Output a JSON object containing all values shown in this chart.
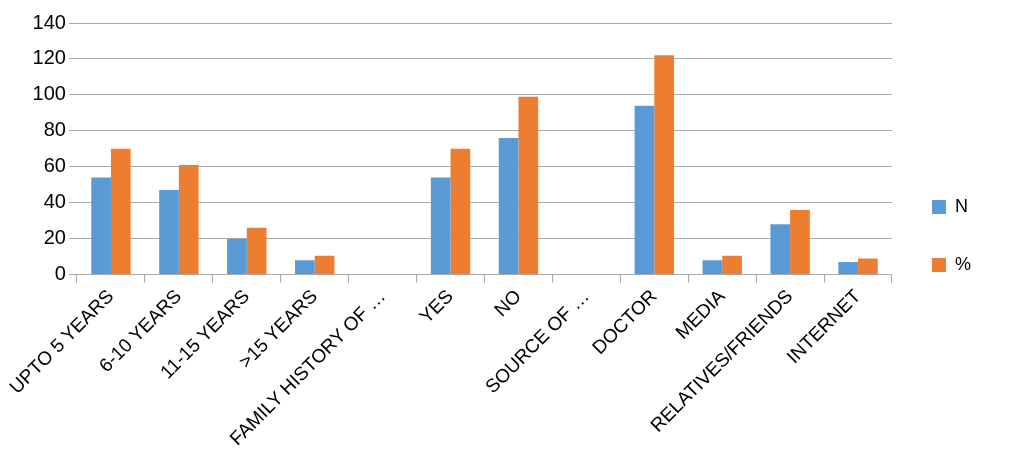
{
  "chart_data": {
    "type": "bar",
    "categories": [
      "UPTO 5 YEARS",
      "6-10 YEARS",
      "11-15 YEARS",
      ">15 YEARS",
      "FAMILY HISTORY OF …",
      "YES",
      "NO",
      "SOURCE OF …",
      "DOCTOR",
      "MEDIA",
      "RELATIVES/FRIENDS",
      "INTERNET"
    ],
    "series": [
      {
        "name": "N",
        "color": "#5b9bd5",
        "values": [
          54,
          47,
          20,
          8,
          null,
          54,
          76,
          null,
          94,
          8,
          28,
          7
        ]
      },
      {
        "name": "%",
        "color": "#ed7d31",
        "values": [
          70,
          61,
          26,
          10.5,
          null,
          70,
          99,
          null,
          122,
          10.5,
          36,
          9
        ]
      }
    ],
    "ylim": [
      0,
      140
    ],
    "yticks": [
      0,
      20,
      40,
      60,
      80,
      100,
      120,
      140
    ],
    "grid": "y",
    "legend": "right"
  }
}
